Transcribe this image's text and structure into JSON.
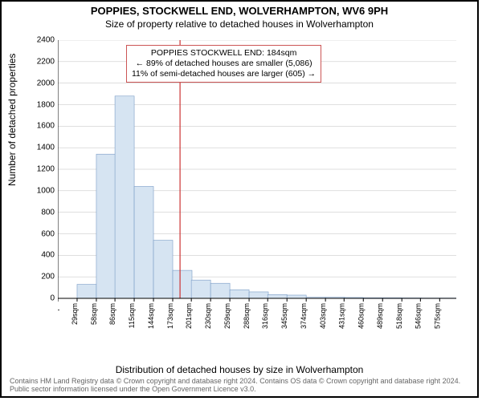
{
  "title": "POPPIES, STOCKWELL END, WOLVERHAMPTON, WV6 9PH",
  "subtitle": "Size of property relative to detached houses in Wolverhampton",
  "y_axis_label": "Number of detached properties",
  "x_axis_label": "Distribution of detached houses by size in Wolverhampton",
  "info_box": {
    "line1": "POPPIES STOCKWELL END: 184sqm",
    "line2": "← 89% of detached houses are smaller (5,086)",
    "line3": "11% of semi-detached houses are larger (605) →"
  },
  "copyright": "Contains HM Land Registry data © Crown copyright and database right 2024.\nContains OS data © Crown copyright and database right 2024. Public sector information licensed under the Open Government Licence v3.0.",
  "chart": {
    "type": "histogram",
    "bar_fill": "#d6e4f2",
    "bar_stroke": "#7a9cc6",
    "grid_color": "#bfbfbf",
    "axis_color": "#000000",
    "background": "#ffffff",
    "reference_line_color": "#cc3333",
    "reference_line_x": 184,
    "x_ticks": [
      0,
      29,
      58,
      86,
      115,
      144,
      173,
      201,
      230,
      259,
      288,
      316,
      345,
      374,
      403,
      431,
      460,
      489,
      518,
      546,
      575
    ],
    "x_tick_labels": [
      "0sqm",
      "29sqm",
      "58sqm",
      "86sqm",
      "115sqm",
      "144sqm",
      "173sqm",
      "201sqm",
      "230sqm",
      "259sqm",
      "288sqm",
      "316sqm",
      "345sqm",
      "374sqm",
      "403sqm",
      "431sqm",
      "460sqm",
      "489sqm",
      "518sqm",
      "546sqm",
      "575sqm"
    ],
    "y_ticks": [
      0,
      200,
      400,
      600,
      800,
      1000,
      1200,
      1400,
      1600,
      1800,
      2000,
      2200,
      2400
    ],
    "x_max": 600,
    "y_max": 2400,
    "bars": [
      {
        "x": 0,
        "v": 0
      },
      {
        "x": 29,
        "v": 130
      },
      {
        "x": 58,
        "v": 1340
      },
      {
        "x": 86,
        "v": 1880
      },
      {
        "x": 115,
        "v": 1040
      },
      {
        "x": 144,
        "v": 540
      },
      {
        "x": 173,
        "v": 260
      },
      {
        "x": 201,
        "v": 170
      },
      {
        "x": 230,
        "v": 140
      },
      {
        "x": 259,
        "v": 80
      },
      {
        "x": 288,
        "v": 60
      },
      {
        "x": 316,
        "v": 35
      },
      {
        "x": 345,
        "v": 30
      },
      {
        "x": 374,
        "v": 10
      },
      {
        "x": 403,
        "v": 10
      },
      {
        "x": 431,
        "v": 8
      },
      {
        "x": 460,
        "v": 5
      },
      {
        "x": 489,
        "v": 5
      },
      {
        "x": 518,
        "v": 4
      },
      {
        "x": 546,
        "v": 3
      },
      {
        "x": 575,
        "v": 3
      }
    ],
    "bar_width_sqm": 29
  }
}
